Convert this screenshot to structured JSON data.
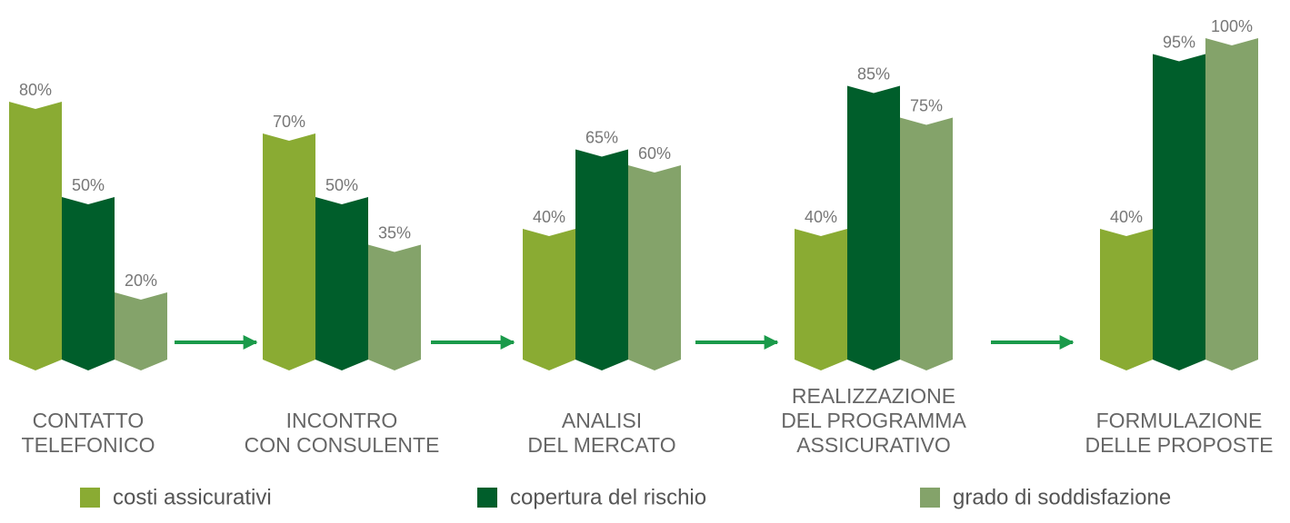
{
  "chart_data": {
    "type": "bar",
    "categories": [
      [
        "CONTATTO",
        "TELEFONICO"
      ],
      [
        "INCONTRO",
        "CON CONSULENTE"
      ],
      [
        "ANALISI",
        "DEL MERCATO"
      ],
      [
        "REALIZZAZIONE",
        "DEL PROGRAMMA",
        "ASSICURATIVO"
      ],
      [
        "FORMULAZIONE",
        "DELLE PROPOSTE"
      ]
    ],
    "series": [
      {
        "name": "costi assicurativi",
        "color": "#8aab33",
        "values": [
          80,
          70,
          40,
          40,
          40
        ],
        "value_labels": [
          "80%",
          "70%",
          "40%",
          "40%",
          "40%"
        ]
      },
      {
        "name": "copertura del rischio",
        "color": "#005e2b",
        "values": [
          50,
          50,
          65,
          85,
          95
        ],
        "value_labels": [
          "50%",
          "50%",
          "65%",
          "85%",
          "95%"
        ]
      },
      {
        "name": "grado di soddisfazione",
        "color": "#84a36a",
        "values": [
          20,
          35,
          60,
          75,
          100
        ],
        "value_labels": [
          "20%",
          "35%",
          "60%",
          "75%",
          "100%"
        ]
      }
    ]
  }
}
